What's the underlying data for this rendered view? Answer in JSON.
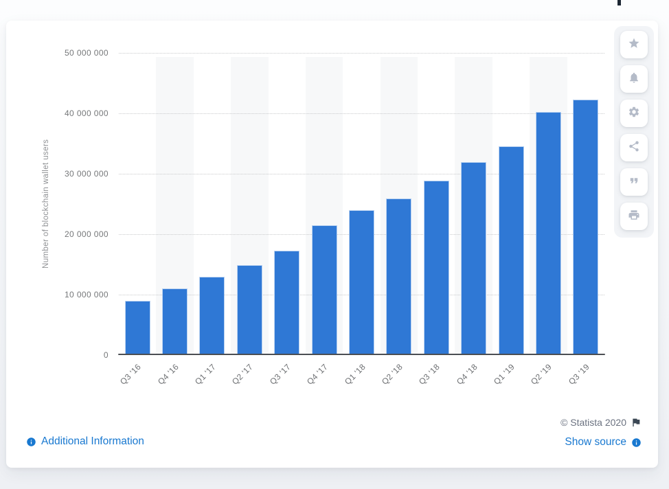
{
  "chart_data": {
    "type": "bar",
    "title": "",
    "categories": [
      "Q3 '16",
      "Q4 '16",
      "Q1 '17",
      "Q2 '17",
      "Q3 '17",
      "Q4 '17",
      "Q1 '18",
      "Q2 '18",
      "Q3 '18",
      "Q4 '18",
      "Q1 '19",
      "Q2 '19",
      "Q3 '19"
    ],
    "values": [
      8950000,
      11000000,
      12900000,
      14900000,
      17300000,
      21500000,
      23950000,
      25900000,
      28900000,
      31900000,
      34600000,
      40200000,
      42300000
    ],
    "xlabel": "",
    "ylabel": "Number of blockchain wallet users",
    "ylim": [
      0,
      50000000
    ],
    "yticks": [
      0,
      10000000,
      20000000,
      30000000,
      40000000,
      50000000
    ],
    "ytick_labels": [
      "0",
      "10 000 000",
      "20 000 000",
      "30 000 000",
      "40 000 000",
      "50 000 000"
    ],
    "grid": "horizontal-dotted",
    "legend": "none",
    "bar_color": "#2f78d5",
    "stripe_color": "#f7f8f9",
    "stripe_pattern": "alternating vertical band behind every second bar"
  },
  "toolbar": {
    "icons": [
      "star-icon",
      "bell-icon",
      "gear-icon",
      "share-icon",
      "quote-icon",
      "printer-icon"
    ]
  },
  "footer": {
    "additional_information": "Additional Information",
    "copyright": "© Statista 2020",
    "show_source": "Show source"
  },
  "colors": {
    "bar_blue": "#2f78d5",
    "link_blue": "#1878d0",
    "copyright_gray": "#6b7280",
    "toolbar_icon_gray": "#b4bbc8"
  }
}
